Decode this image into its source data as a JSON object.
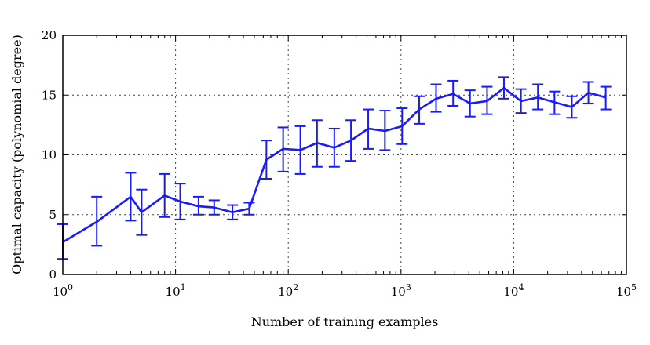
{
  "chart_data": {
    "type": "line",
    "title": "",
    "xlabel": "Number of training examples",
    "ylabel": "Optimal capacity (polynomial degree)",
    "xscale": "log",
    "xlim": [
      1,
      100000
    ],
    "ylim": [
      0,
      20
    ],
    "grid": true,
    "legend": "none",
    "color": "#1a1aff",
    "x_ticks": [
      {
        "value": 1,
        "base": "10",
        "exp": "0"
      },
      {
        "value": 10,
        "base": "10",
        "exp": "1"
      },
      {
        "value": 100,
        "base": "10",
        "exp": "2"
      },
      {
        "value": 1000,
        "base": "10",
        "exp": "3"
      },
      {
        "value": 10000,
        "base": "10",
        "exp": "4"
      },
      {
        "value": 100000,
        "base": "10",
        "exp": "5"
      }
    ],
    "y_ticks": [
      "0",
      "5",
      "10",
      "15",
      "20"
    ],
    "series": [
      {
        "points": [
          {
            "x": 1,
            "y": 2.7,
            "lo": 1.3,
            "hi": 4.2
          },
          {
            "x": 2,
            "y": 4.4,
            "lo": 2.4,
            "hi": 6.5
          },
          {
            "x": 4,
            "y": 6.5,
            "lo": 4.5,
            "hi": 8.5
          },
          {
            "x": 5,
            "y": 5.2,
            "lo": 3.3,
            "hi": 7.1
          },
          {
            "x": 8,
            "y": 6.6,
            "lo": 4.8,
            "hi": 8.4
          },
          {
            "x": 11,
            "y": 6.1,
            "lo": 4.6,
            "hi": 7.6
          },
          {
            "x": 16,
            "y": 5.7,
            "lo": 5.0,
            "hi": 6.5
          },
          {
            "x": 22,
            "y": 5.6,
            "lo": 5.0,
            "hi": 6.2
          },
          {
            "x": 32,
            "y": 5.2,
            "lo": 4.6,
            "hi": 5.8
          },
          {
            "x": 45,
            "y": 5.5,
            "lo": 5.0,
            "hi": 6.0
          },
          {
            "x": 64,
            "y": 9.6,
            "lo": 8.0,
            "hi": 11.2
          },
          {
            "x": 90,
            "y": 10.5,
            "lo": 8.6,
            "hi": 12.3
          },
          {
            "x": 128,
            "y": 10.4,
            "lo": 8.4,
            "hi": 12.4
          },
          {
            "x": 180,
            "y": 11.0,
            "lo": 9.0,
            "hi": 12.9
          },
          {
            "x": 256,
            "y": 10.6,
            "lo": 9.0,
            "hi": 12.2
          },
          {
            "x": 360,
            "y": 11.2,
            "lo": 9.5,
            "hi": 12.9
          },
          {
            "x": 512,
            "y": 12.2,
            "lo": 10.5,
            "hi": 13.8
          },
          {
            "x": 720,
            "y": 12.0,
            "lo": 10.4,
            "hi": 13.7
          },
          {
            "x": 1024,
            "y": 12.4,
            "lo": 10.9,
            "hi": 13.9
          },
          {
            "x": 1450,
            "y": 13.8,
            "lo": 12.6,
            "hi": 14.9
          },
          {
            "x": 2048,
            "y": 14.7,
            "lo": 13.6,
            "hi": 15.9
          },
          {
            "x": 2900,
            "y": 15.1,
            "lo": 14.1,
            "hi": 16.2
          },
          {
            "x": 4096,
            "y": 14.3,
            "lo": 13.2,
            "hi": 15.4
          },
          {
            "x": 5800,
            "y": 14.5,
            "lo": 13.4,
            "hi": 15.7
          },
          {
            "x": 8192,
            "y": 15.6,
            "lo": 14.7,
            "hi": 16.5
          },
          {
            "x": 11600,
            "y": 14.5,
            "lo": 13.5,
            "hi": 15.5
          },
          {
            "x": 16384,
            "y": 14.8,
            "lo": 13.8,
            "hi": 15.9
          },
          {
            "x": 23000,
            "y": 14.4,
            "lo": 13.4,
            "hi": 15.3
          },
          {
            "x": 32768,
            "y": 14.0,
            "lo": 13.1,
            "hi": 14.9
          },
          {
            "x": 46000,
            "y": 15.2,
            "lo": 14.3,
            "hi": 16.1
          },
          {
            "x": 65536,
            "y": 14.8,
            "lo": 13.8,
            "hi": 15.7
          }
        ]
      }
    ]
  }
}
